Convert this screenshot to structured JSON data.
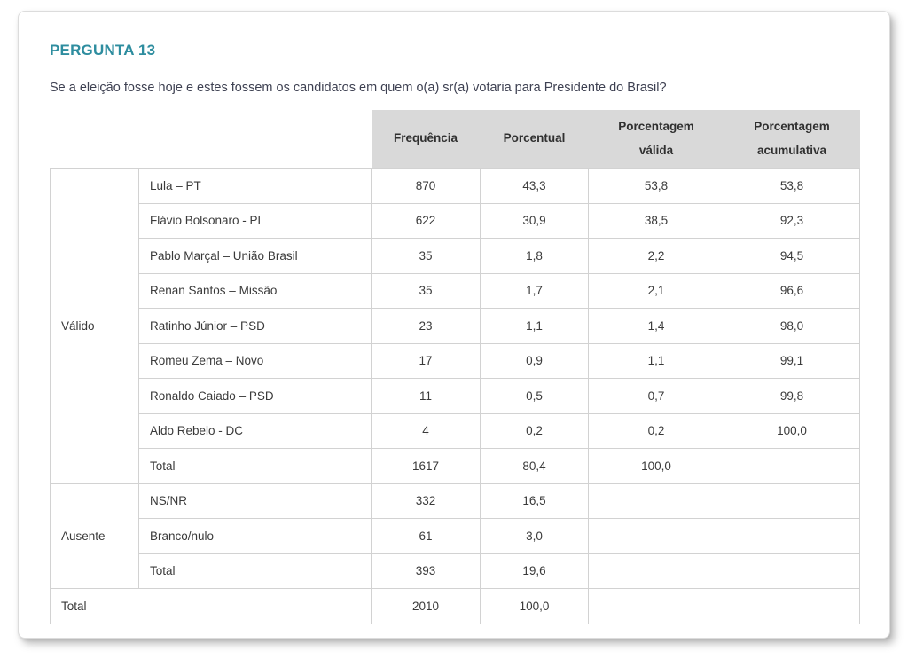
{
  "page": {
    "title": "PERGUNTA 13",
    "question": "Se a eleição fosse hoje e estes fossem os candidatos em quem o(a) sr(a) votaria para Presidente do Brasil?"
  },
  "colors": {
    "accent_teal": "#2e8d9f",
    "header_bg": "#d9d9d9",
    "border": "#d2d2d2",
    "text": "#3a3a3a"
  },
  "table": {
    "headers": [
      "Frequência",
      "Porcentual",
      "Porcentagem válida",
      "Porcentagem acumulativa"
    ],
    "groups": [
      {
        "label": "Válido",
        "rows": [
          {
            "label": "Lula – PT",
            "values": [
              "870",
              "43,3",
              "53,8",
              "53,8"
            ]
          },
          {
            "label": "Flávio Bolsonaro - PL",
            "values": [
              "622",
              "30,9",
              "38,5",
              "92,3"
            ]
          },
          {
            "label": "Pablo Marçal – União Brasil",
            "values": [
              "35",
              "1,8",
              "2,2",
              "94,5"
            ]
          },
          {
            "label": "Renan Santos – Missão",
            "values": [
              "35",
              "1,7",
              "2,1",
              "96,6"
            ]
          },
          {
            "label": "Ratinho Júnior – PSD",
            "values": [
              "23",
              "1,1",
              "1,4",
              "98,0"
            ]
          },
          {
            "label": "Romeu Zema – Novo",
            "values": [
              "17",
              "0,9",
              "1,1",
              "99,1"
            ]
          },
          {
            "label": "Ronaldo Caiado – PSD",
            "values": [
              "11",
              "0,5",
              "0,7",
              "99,8"
            ]
          },
          {
            "label": "Aldo Rebelo - DC",
            "values": [
              "4",
              "0,2",
              "0,2",
              "100,0"
            ]
          },
          {
            "label": "Total",
            "values": [
              "1617",
              "80,4",
              "100,0",
              ""
            ]
          }
        ]
      },
      {
        "label": "Ausente",
        "rows": [
          {
            "label": "NS/NR",
            "values": [
              "332",
              "16,5",
              "",
              ""
            ]
          },
          {
            "label": "Branco/nulo",
            "values": [
              "61",
              "3,0",
              "",
              ""
            ]
          },
          {
            "label": "Total",
            "values": [
              "393",
              "19,6",
              "",
              ""
            ]
          }
        ]
      }
    ],
    "total_row": {
      "label": "Total",
      "values": [
        "2010",
        "100,0",
        "",
        ""
      ]
    }
  }
}
